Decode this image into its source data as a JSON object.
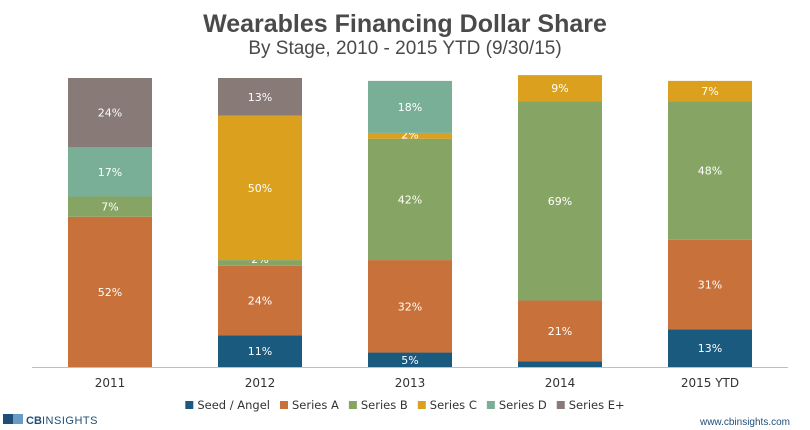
{
  "chart_data": {
    "type": "bar",
    "stacked": true,
    "normalized": true,
    "title": "Wearables Financing Dollar Share",
    "subtitle": "By Stage, 2010 - 2015 YTD (9/30/15)",
    "categories": [
      "2011",
      "2012",
      "2013",
      "2014",
      "2015 YTD"
    ],
    "ylim": [
      0,
      100
    ],
    "grid": false,
    "legend_position": "bottom",
    "series": [
      {
        "name": "Seed / Angel",
        "color": "#1a5a7e",
        "values": [
          0,
          11,
          5,
          2,
          13
        ],
        "labels": [
          "",
          "11%",
          "5%",
          "2%",
          "13%"
        ]
      },
      {
        "name": "Series A",
        "color": "#c9713a",
        "values": [
          52,
          24,
          32,
          21,
          31
        ],
        "labels": [
          "52%",
          "24%",
          "32%",
          "21%",
          "31%"
        ]
      },
      {
        "name": "Series B",
        "color": "#86a564",
        "values": [
          7,
          2,
          42,
          69,
          48
        ],
        "labels": [
          "7%",
          "2%",
          "42%",
          "69%",
          "48%"
        ]
      },
      {
        "name": "Series C",
        "color": "#dba11e",
        "values": [
          0,
          50,
          2,
          9,
          7
        ],
        "labels": [
          "",
          "50%",
          "2%",
          "9%",
          "7%"
        ]
      },
      {
        "name": "Series D",
        "color": "#7aaf97",
        "values": [
          17,
          0,
          18,
          0,
          0
        ],
        "labels": [
          "17%",
          "",
          "18%",
          "",
          ""
        ]
      },
      {
        "name": "Series E+",
        "color": "#877a77",
        "values": [
          24,
          13,
          0,
          0,
          0
        ],
        "labels": [
          "24%",
          "13%",
          "",
          "",
          ""
        ]
      }
    ]
  },
  "branding": {
    "logo_cb": "CB",
    "logo_insights": "INSIGHTS",
    "website": "www.cbinsights.com"
  }
}
